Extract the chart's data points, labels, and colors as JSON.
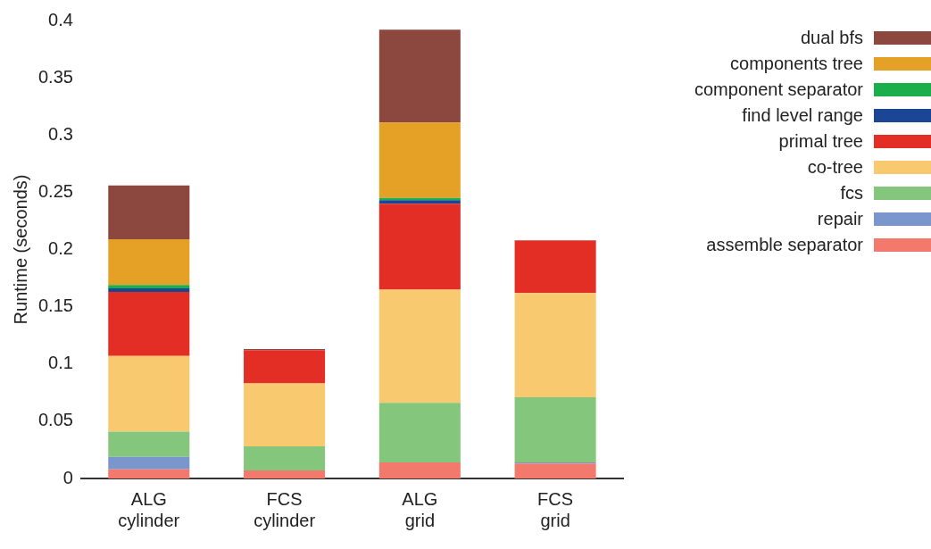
{
  "chart_data": {
    "type": "bar",
    "stacked": true,
    "ylabel": "Runtime (seconds)",
    "categories": [
      "ALG cylinder",
      "FCS cylinder",
      "ALG grid",
      "FCS grid"
    ],
    "ylim": [
      0,
      0.4
    ],
    "yticks": [
      0,
      0.05,
      0.1,
      0.15,
      0.2,
      0.25,
      0.3,
      0.35,
      0.4
    ],
    "grid": false,
    "legend": "right",
    "series": [
      {
        "name": "assemble separator",
        "color": "#f3796c",
        "values": [
          0.008,
          0.007,
          0.014,
          0.013
        ]
      },
      {
        "name": "repair",
        "color": "#7b96cc",
        "values": [
          0.011,
          0,
          0,
          0.001
        ]
      },
      {
        "name": "fcs",
        "color": "#84c77c",
        "values": [
          0.022,
          0.021,
          0.052,
          0.057
        ]
      },
      {
        "name": "co-tree",
        "color": "#f8c96e",
        "values": [
          0.066,
          0.055,
          0.099,
          0.091
        ]
      },
      {
        "name": "primal tree",
        "color": "#e32e26",
        "values": [
          0.056,
          0.029,
          0.075,
          0.046
        ]
      },
      {
        "name": "find level range",
        "color": "#1b4696",
        "values": [
          0.003,
          0,
          0.003,
          0
        ]
      },
      {
        "name": "component separator",
        "color": "#1aaf4b",
        "values": [
          0.003,
          0,
          0.002,
          0
        ]
      },
      {
        "name": "components tree",
        "color": "#e5a126",
        "values": [
          0.04,
          0,
          0.066,
          0
        ]
      },
      {
        "name": "dual bfs",
        "color": "#8c473f",
        "values": [
          0.047,
          0.001,
          0.081,
          0
        ]
      }
    ]
  }
}
